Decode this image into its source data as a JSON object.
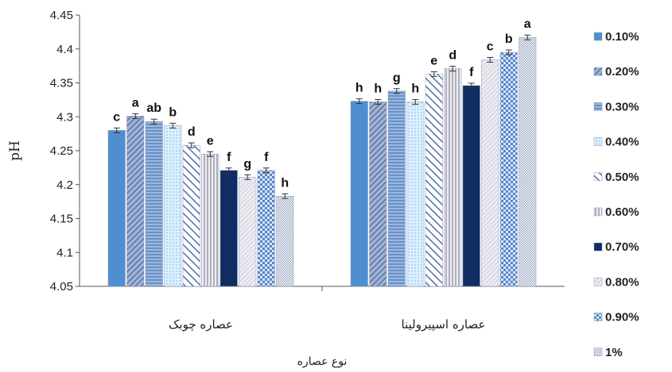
{
  "chart_data": {
    "type": "bar",
    "title": "",
    "xlabel": "نوع عصاره",
    "ylabel": "pH",
    "ylim": [
      4.05,
      4.45
    ],
    "yticks": [
      "4.05",
      "4.1",
      "4.15",
      "4.2",
      "4.25",
      "4.3",
      "4.35",
      "4.4",
      "4.45"
    ],
    "categories": [
      "عصاره چوبک",
      "عصاره اسپیرولینا"
    ],
    "grid": false,
    "legend_position": "right",
    "series": [
      {
        "name": "0.10%",
        "values": [
          4.28,
          4.323
        ],
        "labels": [
          "c",
          "h"
        ],
        "color": "#4f8fd0"
      },
      {
        "name": "0.20%",
        "values": [
          4.301,
          4.322
        ],
        "labels": [
          "a",
          "h"
        ],
        "color": "#6f86b6"
      },
      {
        "name": "0.30%",
        "values": [
          4.293,
          4.338
        ],
        "labels": [
          "ab",
          "g"
        ],
        "color": "#7a9fd0"
      },
      {
        "name": "0.40%",
        "values": [
          4.287,
          4.322
        ],
        "labels": [
          "b",
          "h"
        ],
        "color": "#bfe0f7"
      },
      {
        "name": "0.50%",
        "values": [
          4.258,
          4.363
        ],
        "labels": [
          "d",
          "e"
        ],
        "color": "#6c8cc4"
      },
      {
        "name": "0.60%",
        "values": [
          4.245,
          4.371
        ],
        "labels": [
          "e",
          "d"
        ],
        "color": "#b8b8c8"
      },
      {
        "name": "0.70%",
        "values": [
          4.221,
          4.346
        ],
        "labels": [
          "f",
          "f"
        ],
        "color": "#0f2d63"
      },
      {
        "name": "0.80%",
        "values": [
          4.211,
          4.384
        ],
        "labels": [
          "g",
          "c"
        ],
        "color": "#c8c8d2"
      },
      {
        "name": "0.90%",
        "values": [
          4.221,
          4.395
        ],
        "labels": [
          "f",
          "b"
        ],
        "color": "#5a86c8"
      },
      {
        "name": "1%",
        "values": [
          4.183,
          4.417
        ],
        "labels": [
          "h",
          "a"
        ],
        "color": "#c6cfe0"
      }
    ]
  }
}
